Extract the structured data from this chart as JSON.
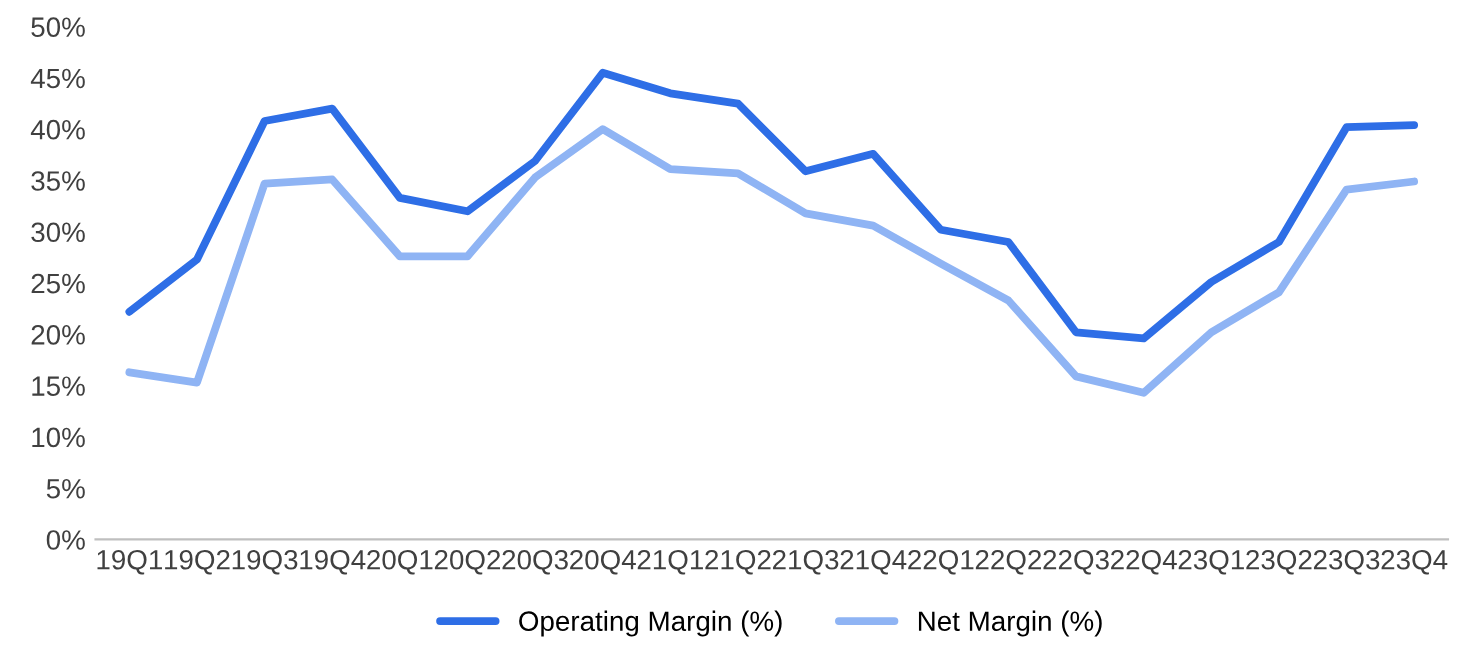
{
  "chart_data": {
    "type": "line",
    "categories": [
      "19Q1",
      "19Q2",
      "19Q3",
      "19Q4",
      "20Q1",
      "20Q2",
      "20Q3",
      "20Q4",
      "21Q1",
      "21Q2",
      "21Q3",
      "21Q4",
      "22Q1",
      "22Q2",
      "22Q3",
      "22Q4",
      "23Q1",
      "23Q2",
      "23Q3",
      "23Q4"
    ],
    "series": [
      {
        "name": "Operating Margin (%)",
        "color": "#2e6ee6",
        "values": [
          22.2,
          27.3,
          40.8,
          42.0,
          33.3,
          32.0,
          36.9,
          45.5,
          43.5,
          42.5,
          35.9,
          37.6,
          30.2,
          29.0,
          20.2,
          19.6,
          25.1,
          29.0,
          40.2,
          40.4
        ]
      },
      {
        "name": "Net Margin (%)",
        "color": "#8fb4f4",
        "values": [
          16.3,
          15.3,
          34.7,
          35.1,
          27.6,
          27.6,
          35.3,
          40.0,
          36.1,
          35.7,
          31.8,
          30.6,
          26.9,
          23.3,
          15.9,
          14.3,
          20.2,
          24.1,
          34.1,
          34.9
        ]
      }
    ],
    "ylim": [
      0,
      50
    ],
    "yticks": [
      {
        "value": 0,
        "label": "0%"
      },
      {
        "value": 5,
        "label": "5%"
      },
      {
        "value": 10,
        "label": "10%"
      },
      {
        "value": 15,
        "label": "15%"
      },
      {
        "value": 20,
        "label": "20%"
      },
      {
        "value": 25,
        "label": "25%"
      },
      {
        "value": 30,
        "label": "30%"
      },
      {
        "value": 35,
        "label": "35%"
      },
      {
        "value": 40,
        "label": "40%"
      },
      {
        "value": 45,
        "label": "45%"
      },
      {
        "value": 50,
        "label": "50%"
      }
    ],
    "grid": false,
    "legend": "bottom",
    "marker": "none",
    "line_style": "solid"
  }
}
